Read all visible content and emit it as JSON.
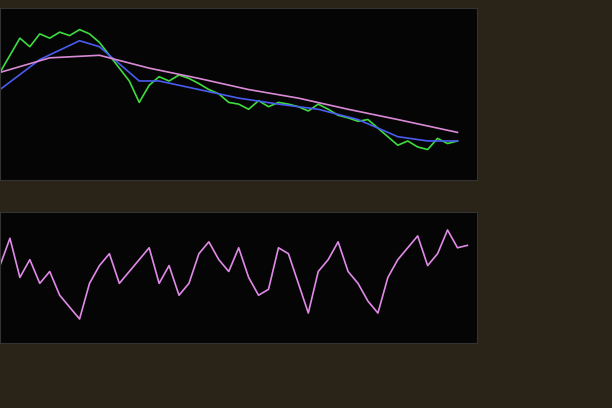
{
  "chart_data": [
    {
      "type": "line",
      "tick_labels": false,
      "grid": false,
      "xlim": [
        0,
        480
      ],
      "ylim": [
        0,
        100
      ],
      "series": [
        {
          "color": "#3fdc3f",
          "line_style": "solid",
          "x": [
            0,
            10,
            20,
            30,
            40,
            50,
            60,
            70,
            80,
            90,
            100,
            110,
            120,
            130,
            140,
            150,
            160,
            170,
            180,
            190,
            200,
            210,
            220,
            230,
            240,
            250,
            260,
            270,
            280,
            290,
            300,
            310,
            320,
            330,
            340,
            350,
            360,
            370,
            380,
            390,
            400,
            410,
            420,
            430,
            440,
            450,
            460
          ],
          "values": [
            62.5,
            72.5,
            82.5,
            77.5,
            85,
            82.5,
            86,
            84,
            87.5,
            85,
            80,
            72.5,
            65,
            57.5,
            45,
            55,
            60,
            57.5,
            61,
            59,
            56,
            52.5,
            50,
            45,
            44,
            41,
            46,
            42.5,
            45,
            44,
            42.5,
            40,
            44,
            41,
            37.5,
            36,
            34,
            35,
            30,
            25,
            20,
            22.5,
            19,
            17.5,
            24,
            21,
            22.5
          ]
        },
        {
          "color": "#4a5cf0",
          "line_style": "solid",
          "x": [
            0,
            40,
            80,
            100,
            120,
            140,
            160,
            200,
            240,
            280,
            320,
            360,
            400,
            430,
            460
          ],
          "values": [
            52.5,
            70,
            81,
            77.5,
            67.5,
            57.5,
            57.5,
            52.5,
            47.5,
            44,
            41,
            35,
            25,
            22.5,
            22.5
          ]
        },
        {
          "color": "#d98ad6",
          "line_style": "solid",
          "x": [
            0,
            50,
            100,
            150,
            200,
            250,
            300,
            350,
            400,
            460
          ],
          "values": [
            62.5,
            71,
            72.5,
            65,
            59,
            52.5,
            47.5,
            41,
            35,
            27.5
          ]
        }
      ]
    },
    {
      "type": "line",
      "tick_labels": false,
      "grid": false,
      "xlim": [
        0,
        480
      ],
      "ylim": [
        0,
        110
      ],
      "series": [
        {
          "color": "#e08ae8",
          "line_style": "solid",
          "x": [
            0,
            10,
            20,
            30,
            40,
            50,
            60,
            70,
            80,
            90,
            100,
            110,
            120,
            130,
            140,
            150,
            160,
            170,
            180,
            190,
            200,
            210,
            220,
            230,
            240,
            250,
            260,
            270,
            280,
            290,
            300,
            310,
            320,
            330,
            340,
            350,
            360,
            370,
            380,
            390,
            400,
            410,
            420,
            430,
            440,
            450,
            460,
            470
          ],
          "values": [
            65,
            88,
            55,
            70,
            50,
            60,
            40,
            30,
            20,
            50,
            65,
            75,
            50,
            60,
            70,
            80,
            50,
            65,
            40,
            50,
            75,
            85,
            70,
            60,
            80,
            55,
            40,
            45,
            80,
            75,
            50,
            25,
            60,
            70,
            85,
            60,
            50,
            35,
            25,
            55,
            70,
            80,
            90,
            65,
            75,
            95,
            80,
            82
          ]
        }
      ]
    }
  ]
}
